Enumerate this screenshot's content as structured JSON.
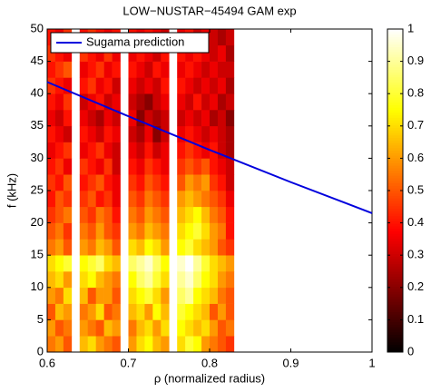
{
  "chart_data": {
    "type": "heatmap",
    "title": "LOW−NUSTAR−45494 GAM exp",
    "x_label": "ρ (normalized radius)",
    "y_label": "f (kHz)",
    "xlim": [
      0.6,
      1
    ],
    "xticks": [
      0.6,
      0.7,
      0.8,
      0.9,
      1
    ],
    "ylim": [
      0,
      50
    ],
    "yticks": [
      0,
      5,
      10,
      15,
      20,
      25,
      30,
      35,
      40,
      45,
      50
    ],
    "xbins": [
      0.6,
      0.61,
      0.62,
      0.63,
      0.64,
      0.65,
      0.66,
      0.67,
      0.68,
      0.69,
      0.7,
      0.71,
      0.72,
      0.73,
      0.74,
      0.75,
      0.76,
      0.77,
      0.78,
      0.79,
      0.8,
      0.81,
      0.82,
      0.83
    ],
    "ybins": [
      0,
      2.5,
      5,
      7.5,
      10,
      12.5,
      15,
      17.5,
      20,
      22.5,
      25,
      27.5,
      30,
      32.5,
      35,
      37.5,
      40,
      42.5,
      45,
      47.5,
      50
    ],
    "z": [
      [
        0.55,
        0.6,
        0.5,
        null,
        0.65,
        0.7,
        0.6,
        0.55,
        0.5,
        null,
        0.6,
        0.7,
        0.75,
        0.65,
        0.6,
        null,
        0.7,
        0.8,
        0.75,
        0.6,
        0.55,
        0.5,
        0.45
      ],
      [
        0.6,
        0.5,
        0.55,
        null,
        0.6,
        0.55,
        0.5,
        0.65,
        0.6,
        null,
        0.55,
        0.65,
        0.7,
        0.6,
        0.7,
        null,
        0.75,
        0.7,
        0.65,
        0.7,
        0.6,
        0.5,
        0.55
      ],
      [
        0.5,
        0.65,
        0.6,
        null,
        0.55,
        0.6,
        0.7,
        0.5,
        0.55,
        null,
        0.65,
        0.7,
        0.6,
        0.75,
        0.65,
        null,
        0.8,
        0.75,
        0.7,
        0.65,
        0.5,
        0.6,
        0.5
      ],
      [
        0.6,
        0.55,
        0.7,
        null,
        0.65,
        0.5,
        0.6,
        0.6,
        0.5,
        null,
        0.7,
        0.75,
        0.8,
        0.7,
        0.6,
        null,
        0.85,
        0.9,
        0.75,
        0.7,
        0.65,
        0.55,
        0.5
      ],
      [
        0.65,
        0.7,
        0.6,
        null,
        0.7,
        0.75,
        0.65,
        0.6,
        0.55,
        null,
        0.75,
        0.85,
        0.9,
        0.8,
        0.7,
        null,
        0.9,
        0.95,
        0.85,
        0.75,
        0.7,
        0.6,
        0.55
      ],
      [
        0.7,
        0.75,
        0.8,
        null,
        0.75,
        0.8,
        0.85,
        0.7,
        0.65,
        null,
        0.85,
        0.9,
        0.95,
        0.85,
        0.75,
        null,
        0.95,
        1.0,
        0.9,
        0.8,
        0.7,
        0.65,
        0.6
      ],
      [
        0.55,
        0.6,
        0.5,
        null,
        0.6,
        0.55,
        0.65,
        0.6,
        0.5,
        null,
        0.7,
        0.65,
        0.75,
        0.7,
        0.6,
        null,
        0.75,
        0.8,
        0.7,
        0.65,
        0.6,
        0.5,
        0.45
      ],
      [
        0.5,
        0.55,
        0.45,
        null,
        0.55,
        0.5,
        0.6,
        0.5,
        0.45,
        null,
        0.6,
        0.55,
        0.65,
        0.6,
        0.55,
        null,
        0.7,
        0.75,
        0.8,
        0.7,
        0.6,
        0.55,
        0.4
      ],
      [
        0.45,
        0.5,
        0.55,
        null,
        0.5,
        0.45,
        0.55,
        0.5,
        0.4,
        null,
        0.55,
        0.5,
        0.6,
        0.55,
        0.5,
        null,
        0.65,
        0.7,
        0.75,
        0.65,
        0.55,
        0.5,
        0.4
      ],
      [
        0.4,
        0.5,
        0.45,
        null,
        0.45,
        0.5,
        0.4,
        0.45,
        0.35,
        null,
        0.5,
        0.45,
        0.55,
        0.5,
        0.45,
        null,
        0.6,
        0.65,
        0.6,
        0.55,
        0.5,
        0.45,
        0.35
      ],
      [
        0.45,
        0.4,
        0.5,
        null,
        0.4,
        0.45,
        0.5,
        0.4,
        0.35,
        null,
        0.45,
        0.4,
        0.5,
        0.45,
        0.4,
        null,
        0.5,
        0.6,
        0.55,
        0.6,
        0.45,
        0.4,
        0.3
      ],
      [
        0.4,
        0.45,
        0.35,
        null,
        0.45,
        0.4,
        0.35,
        0.45,
        0.3,
        null,
        0.4,
        0.35,
        0.45,
        0.4,
        0.35,
        null,
        0.45,
        0.5,
        0.45,
        0.5,
        0.4,
        0.35,
        0.3
      ],
      [
        0.35,
        0.4,
        0.45,
        null,
        0.35,
        0.4,
        0.45,
        0.35,
        0.3,
        null,
        0.35,
        0.3,
        0.4,
        0.3,
        0.35,
        null,
        0.4,
        0.45,
        0.4,
        0.35,
        0.4,
        0.3,
        0.25
      ],
      [
        0.4,
        0.35,
        0.3,
        null,
        0.4,
        0.35,
        0.3,
        0.4,
        0.35,
        null,
        0.3,
        0.25,
        0.35,
        0.2,
        0.3,
        null,
        0.35,
        0.4,
        0.35,
        0.3,
        0.35,
        0.3,
        0.25
      ],
      [
        0.35,
        0.3,
        0.4,
        null,
        0.35,
        0.3,
        0.25,
        0.35,
        0.3,
        null,
        0.35,
        0.2,
        0.3,
        0.25,
        0.3,
        null,
        0.3,
        0.35,
        0.3,
        0.35,
        0.25,
        0.3,
        0.2
      ],
      [
        0.4,
        0.35,
        0.45,
        null,
        0.3,
        0.35,
        0.4,
        0.3,
        0.35,
        null,
        0.3,
        0.25,
        0.2,
        0.3,
        0.35,
        null,
        0.35,
        0.3,
        0.4,
        0.3,
        0.35,
        0.25,
        0.3
      ],
      [
        0.45,
        0.4,
        0.35,
        null,
        0.4,
        0.45,
        0.35,
        0.4,
        0.3,
        null,
        0.35,
        0.3,
        0.35,
        0.3,
        0.4,
        null,
        0.4,
        0.35,
        0.3,
        0.35,
        0.3,
        0.35,
        0.25
      ],
      [
        0.4,
        0.45,
        0.5,
        null,
        0.35,
        0.4,
        0.45,
        0.35,
        0.4,
        null,
        0.4,
        0.35,
        0.3,
        0.4,
        0.35,
        null,
        0.35,
        0.4,
        0.35,
        0.3,
        0.35,
        0.3,
        0.3
      ],
      [
        0.45,
        0.4,
        0.35,
        null,
        0.45,
        0.4,
        0.35,
        0.45,
        0.35,
        null,
        0.35,
        0.4,
        0.35,
        0.3,
        0.4,
        null,
        0.4,
        0.35,
        0.4,
        0.35,
        0.3,
        0.35,
        0.25
      ],
      [
        0.4,
        0.35,
        0.45,
        null,
        0.4,
        0.45,
        0.4,
        0.35,
        0.4,
        null,
        0.4,
        0.35,
        0.4,
        0.35,
        0.3,
        null,
        0.35,
        0.4,
        0.3,
        0.35,
        0.3,
        0.25,
        0.3
      ]
    ],
    "colorbar": {
      "lim": [
        0,
        1
      ],
      "ticks": [
        0,
        0.1,
        0.2,
        0.3,
        0.4,
        0.5,
        0.6,
        0.7,
        0.8,
        0.9,
        1
      ]
    },
    "series": [
      {
        "name": "Sugama prediction",
        "color": "#0000dd",
        "x": [
          0.6,
          0.7,
          0.8,
          0.9,
          1
        ],
        "values": [
          41.8,
          36.5,
          31.3,
          26.3,
          21.5
        ]
      }
    ],
    "legend": "upper left"
  }
}
